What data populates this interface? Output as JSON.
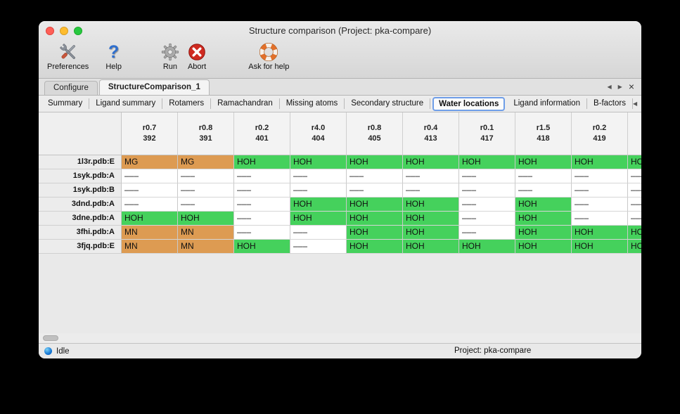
{
  "window": {
    "title": "Structure comparison (Project: pka-compare)"
  },
  "toolbar": {
    "preferences": "Preferences",
    "help": "Help",
    "run": "Run",
    "abort": "Abort",
    "ask_for_help": "Ask for help"
  },
  "icons": {
    "nav_left": "◀",
    "nav_right": "▶",
    "close_tab": "×"
  },
  "tabbar": {
    "tabs": [
      {
        "label": "Configure",
        "active": false
      },
      {
        "label": "StructureComparison_1",
        "active": true
      }
    ]
  },
  "subtabs": {
    "items": [
      "Summary",
      "Ligand summary",
      "Rotamers",
      "Ramachandran",
      "Missing atoms",
      "Secondary structure",
      "Water locations",
      "Ligand information",
      "B-factors"
    ],
    "active": "Water locations"
  },
  "table": {
    "columns": [
      {
        "line1": "r0.7",
        "line2": "392"
      },
      {
        "line1": "r0.8",
        "line2": "391"
      },
      {
        "line1": "r0.2",
        "line2": "401"
      },
      {
        "line1": "r4.0",
        "line2": "404"
      },
      {
        "line1": "r0.8",
        "line2": "405"
      },
      {
        "line1": "r0.4",
        "line2": "413"
      },
      {
        "line1": "r0.1",
        "line2": "417"
      },
      {
        "line1": "r1.5",
        "line2": "418"
      },
      {
        "line1": "r0.2",
        "line2": "419"
      },
      {
        "line1": "",
        "line2": ""
      }
    ],
    "rows": [
      {
        "label": "1l3r.pdb:E",
        "cells": [
          "MG",
          "MG",
          "HOH",
          "HOH",
          "HOH",
          "HOH",
          "HOH",
          "HOH",
          "HOH",
          "HOH"
        ]
      },
      {
        "label": "1syk.pdb:A",
        "cells": [
          "–––",
          "–––",
          "–––",
          "–––",
          "–––",
          "–––",
          "–––",
          "–––",
          "–––",
          "–––"
        ]
      },
      {
        "label": "1syk.pdb:B",
        "cells": [
          "–––",
          "–––",
          "–––",
          "–––",
          "–––",
          "–––",
          "–––",
          "–––",
          "–––",
          "–––"
        ]
      },
      {
        "label": "3dnd.pdb:A",
        "cells": [
          "–––",
          "–––",
          "–––",
          "HOH",
          "HOH",
          "HOH",
          "–––",
          "HOH",
          "–––",
          "–––"
        ]
      },
      {
        "label": "3dne.pdb:A",
        "cells": [
          "HOH",
          "HOH",
          "–––",
          "HOH",
          "HOH",
          "HOH",
          "–––",
          "HOH",
          "–––",
          "–––"
        ]
      },
      {
        "label": "3fhi.pdb:A",
        "cells": [
          "MN",
          "MN",
          "–––",
          "–––",
          "HOH",
          "HOH",
          "–––",
          "HOH",
          "HOH",
          "HOH"
        ]
      },
      {
        "label": "3fjq.pdb:E",
        "cells": [
          "MN",
          "MN",
          "HOH",
          "–––",
          "HOH",
          "HOH",
          "HOH",
          "HOH",
          "HOH",
          "HOH"
        ]
      }
    ]
  },
  "statusbar": {
    "status": "Idle",
    "project": "Project: pka-compare"
  },
  "colors": {
    "water": "#45d15c",
    "metal": "#dd9b52"
  }
}
